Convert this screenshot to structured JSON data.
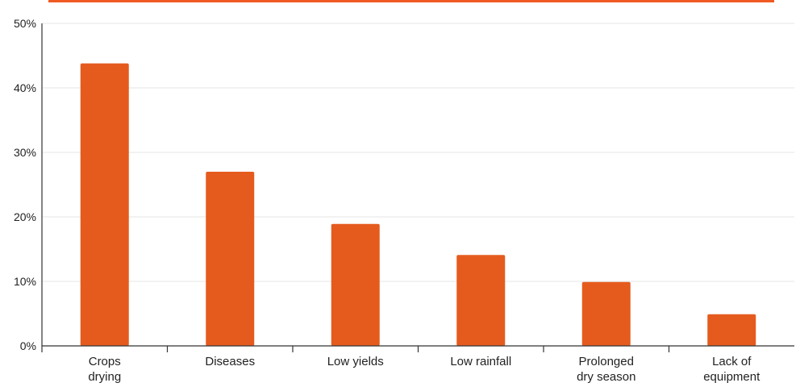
{
  "chart_data": {
    "type": "bar",
    "title": "",
    "xlabel": "",
    "ylabel": "",
    "categories": [
      [
        "Crops",
        "drying"
      ],
      [
        "Diseases"
      ],
      [
        "Low yields"
      ],
      [
        "Low rainfall"
      ],
      [
        "Prolonged",
        "dry season"
      ],
      [
        "Lack of",
        "equipment"
      ]
    ],
    "values": [
      43.8,
      27.0,
      18.9,
      14.1,
      9.9,
      4.9
    ],
    "ylim": [
      0,
      50
    ],
    "yticks": [
      0,
      10,
      20,
      30,
      40,
      50
    ],
    "ytick_labels": [
      "0%",
      "10%",
      "20%",
      "30%",
      "40%",
      "50%"
    ],
    "grid": true,
    "legend": "none",
    "colors": {
      "bar": "#E55B1E",
      "top_strip": "#F05A22",
      "grid": "#E4E4E4",
      "axis": "#333333",
      "text": "#222222"
    }
  }
}
